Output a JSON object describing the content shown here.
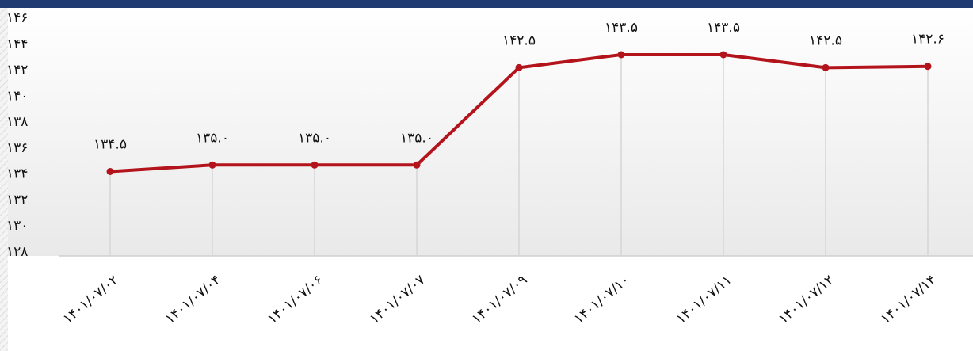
{
  "chart_data": {
    "type": "line",
    "categories": [
      "۱۴۰۱/۰۷/۰۲",
      "۱۴۰۱/۰۷/۰۴",
      "۱۴۰۱/۰۷/۰۶",
      "۱۴۰۱/۰۷/۰۷",
      "۱۴۰۱/۰۷/۰۹",
      "۱۴۰۱/۰۷/۱۰",
      "۱۴۰۱/۰۷/۱۱",
      "۱۴۰۱/۰۷/۱۲",
      "۱۴۰۱/۰۷/۱۴"
    ],
    "values": [
      134.5,
      135.0,
      135.0,
      135.0,
      142.5,
      143.5,
      143.5,
      142.5,
      142.6
    ],
    "value_labels": [
      "۱۳۴.۵",
      "۱۳۵.۰",
      "۱۳۵.۰",
      "۱۳۵.۰",
      "۱۴۲.۵",
      "۱۴۳.۵",
      "۱۴۳.۵",
      "۱۴۲.۵",
      "۱۴۲.۶"
    ],
    "color": "#b3141c",
    "ylim": [
      128,
      146
    ],
    "yticks": [
      {
        "value": 128,
        "label": "۱۲۸"
      },
      {
        "value": 130,
        "label": "۱۳۰"
      },
      {
        "value": 132,
        "label": "۱۳۲"
      },
      {
        "value": 134,
        "label": "۱۳۴"
      },
      {
        "value": 136,
        "label": "۱۳۶"
      },
      {
        "value": 138,
        "label": "۱۳۸"
      },
      {
        "value": 140,
        "label": "۱۴۰"
      },
      {
        "value": 142,
        "label": "۱۴۲"
      },
      {
        "value": 144,
        "label": "۱۴۴"
      },
      {
        "value": 146,
        "label": "۱۴۶"
      }
    ]
  }
}
